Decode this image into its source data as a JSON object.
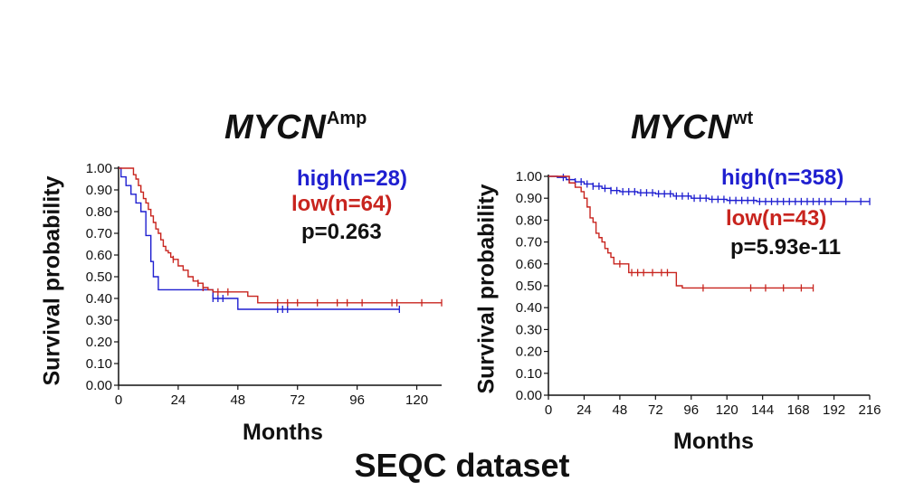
{
  "footer": "SEQC dataset",
  "colors": {
    "high": "#1f1fd0",
    "low": "#c8241e",
    "axis": "#111111"
  },
  "chart_data": [
    {
      "type": "line",
      "title": "MYCN",
      "title_superscript": "Amp",
      "xlabel": "Months",
      "ylabel": "Survival probability",
      "xlim": [
        0,
        130
      ],
      "ylim": [
        0,
        1
      ],
      "xticks": [
        "0",
        "24",
        "48",
        "72",
        "96",
        "120"
      ],
      "xtick_values": [
        0,
        24,
        48,
        72,
        96,
        120
      ],
      "yticks": [
        "0.00",
        "0.10",
        "0.20",
        "0.30",
        "0.40",
        "0.50",
        "0.60",
        "0.70",
        "0.80",
        "0.90",
        "1.00"
      ],
      "annotation": "p=0.263",
      "series": [
        {
          "name": "high(n=28)",
          "color": "high",
          "x": [
            0,
            1,
            2,
            3,
            4,
            5,
            6,
            7,
            8,
            9,
            10,
            11,
            12,
            13,
            14,
            16,
            20,
            22,
            36,
            38,
            42,
            44,
            48,
            52,
            56,
            60,
            64,
            68,
            72,
            76,
            80,
            90,
            100,
            110,
            113
          ],
          "y": [
            1.0,
            0.96,
            0.96,
            0.92,
            0.92,
            0.88,
            0.88,
            0.84,
            0.84,
            0.8,
            0.8,
            0.69,
            0.69,
            0.57,
            0.5,
            0.44,
            0.44,
            0.44,
            0.44,
            0.4,
            0.4,
            0.4,
            0.35,
            0.35,
            0.35,
            0.35,
            0.35,
            0.35,
            0.35,
            0.35,
            0.35,
            0.35,
            0.35,
            0.35,
            0.35
          ],
          "censor_x": [
            38,
            40,
            42,
            64,
            66,
            68,
            113
          ]
        },
        {
          "name": "low(n=64)",
          "color": "low",
          "x": [
            0,
            5,
            6,
            7,
            8,
            9,
            10,
            11,
            12,
            13,
            14,
            15,
            16,
            17,
            18,
            19,
            20,
            21,
            22,
            24,
            26,
            28,
            30,
            32,
            34,
            36,
            38,
            40,
            42,
            44,
            48,
            52,
            56,
            60,
            70,
            80,
            90,
            100,
            110,
            120,
            130
          ],
          "y": [
            1.0,
            1.0,
            0.97,
            0.95,
            0.92,
            0.89,
            0.86,
            0.84,
            0.81,
            0.78,
            0.75,
            0.72,
            0.7,
            0.67,
            0.64,
            0.62,
            0.61,
            0.59,
            0.58,
            0.55,
            0.53,
            0.5,
            0.48,
            0.47,
            0.45,
            0.44,
            0.43,
            0.43,
            0.43,
            0.43,
            0.43,
            0.41,
            0.38,
            0.38,
            0.38,
            0.38,
            0.38,
            0.38,
            0.38,
            0.38,
            0.38
          ],
          "censor_x": [
            22,
            32,
            34,
            40,
            44,
            64,
            68,
            72,
            80,
            88,
            92,
            98,
            110,
            112,
            122,
            130
          ]
        }
      ]
    },
    {
      "type": "line",
      "title": "MYCN",
      "title_superscript": "wt",
      "xlabel": "Months",
      "ylabel": "Survival probability",
      "xlim": [
        0,
        216
      ],
      "ylim": [
        0,
        1
      ],
      "xticks": [
        "0",
        "24",
        "48",
        "72",
        "96",
        "120",
        "144",
        "168",
        "192",
        "216"
      ],
      "xtick_values": [
        0,
        24,
        48,
        72,
        96,
        120,
        144,
        168,
        192,
        216
      ],
      "yticks": [
        "0.00",
        "0.10",
        "0.20",
        "0.30",
        "0.40",
        "0.50",
        "0.60",
        "0.70",
        "0.80",
        "0.90",
        "1.00"
      ],
      "annotation": "p=5.93e-11",
      "series": [
        {
          "name": "high(n=358)",
          "color": "high",
          "x": [
            0,
            6,
            12,
            18,
            24,
            30,
            36,
            42,
            48,
            60,
            72,
            84,
            96,
            108,
            120,
            140,
            160,
            180,
            200,
            216
          ],
          "y": [
            1.0,
            0.995,
            0.985,
            0.975,
            0.965,
            0.955,
            0.945,
            0.935,
            0.93,
            0.925,
            0.92,
            0.91,
            0.9,
            0.895,
            0.89,
            0.885,
            0.885,
            0.885,
            0.885,
            0.885
          ],
          "censor_x": [
            10,
            14,
            18,
            22,
            26,
            30,
            34,
            38,
            42,
            46,
            50,
            54,
            58,
            62,
            66,
            70,
            74,
            78,
            82,
            86,
            90,
            94,
            98,
            102,
            106,
            110,
            114,
            118,
            122,
            126,
            130,
            134,
            138,
            142,
            146,
            150,
            154,
            158,
            162,
            166,
            170,
            174,
            178,
            182,
            186,
            190,
            200,
            210,
            216
          ]
        },
        {
          "name": "low(n=43)",
          "color": "low",
          "x": [
            0,
            12,
            14,
            18,
            22,
            24,
            26,
            28,
            30,
            32,
            34,
            36,
            38,
            40,
            42,
            44,
            46,
            48,
            54,
            60,
            72,
            84,
            86,
            90,
            96,
            120,
            144,
            168,
            178
          ],
          "y": [
            1.0,
            1.0,
            0.97,
            0.95,
            0.93,
            0.9,
            0.86,
            0.81,
            0.79,
            0.74,
            0.72,
            0.7,
            0.67,
            0.65,
            0.63,
            0.6,
            0.6,
            0.6,
            0.56,
            0.56,
            0.56,
            0.56,
            0.5,
            0.49,
            0.49,
            0.49,
            0.49,
            0.49,
            0.49
          ],
          "censor_x": [
            48,
            56,
            60,
            64,
            70,
            76,
            80,
            104,
            136,
            146,
            158,
            170,
            178
          ]
        }
      ]
    }
  ]
}
